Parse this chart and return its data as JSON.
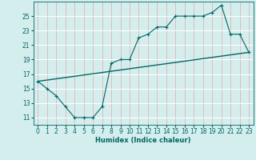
{
  "xlabel": "Humidex (Indice chaleur)",
  "bg_color": "#d4eeee",
  "grid_color_major": "#e8b0b0",
  "grid_color_minor": "#ffffff",
  "line_color": "#006666",
  "xlim": [
    -0.5,
    23.5
  ],
  "ylim": [
    10.0,
    27.0
  ],
  "yticks": [
    11,
    13,
    15,
    17,
    19,
    21,
    23,
    25
  ],
  "xticks": [
    0,
    1,
    2,
    3,
    4,
    5,
    6,
    7,
    8,
    9,
    10,
    11,
    12,
    13,
    14,
    15,
    16,
    17,
    18,
    19,
    20,
    21,
    22,
    23
  ],
  "curve_x": [
    0,
    1,
    2,
    3,
    4,
    5,
    6,
    7,
    8,
    9,
    10,
    11,
    12,
    13,
    14,
    15,
    16,
    17,
    18,
    19,
    20,
    21,
    22,
    23
  ],
  "curve_y": [
    16.0,
    15.0,
    14.0,
    12.5,
    11.0,
    11.0,
    11.0,
    12.5,
    18.5,
    19.0,
    19.0,
    22.0,
    22.5,
    23.5,
    23.5,
    25.0,
    25.0,
    25.0,
    25.0,
    25.5,
    26.5,
    22.5,
    22.5,
    20.0
  ],
  "trend_x": [
    0,
    23
  ],
  "trend_y": [
    16.0,
    20.0
  ],
  "xlabel_fontsize": 6,
  "tick_fontsize": 5.5
}
